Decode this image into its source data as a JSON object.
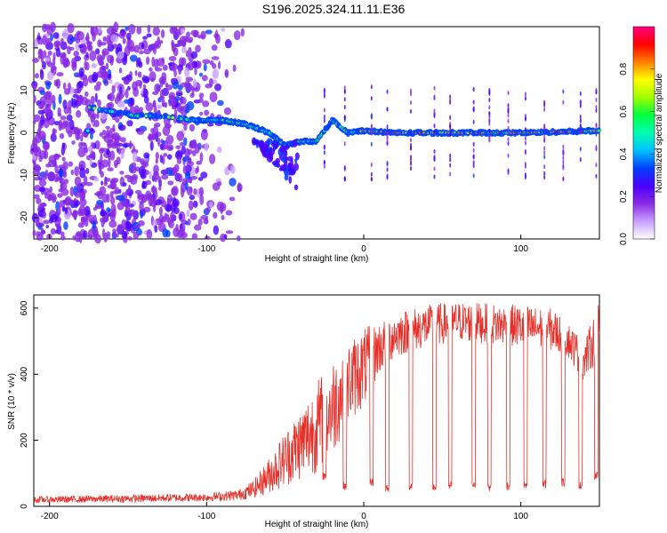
{
  "title": "S196.2025.324.11.11.E36",
  "chart_data": [
    {
      "type": "heatmap",
      "xlabel": "Height of straight line (km)",
      "ylabel": "Frequency (Hz)",
      "xlim": [
        -210,
        150
      ],
      "ylim": [
        -25,
        25
      ],
      "xticks": [
        -200,
        -100,
        0,
        100
      ],
      "yticks": [
        -20,
        -10,
        0,
        10,
        20
      ],
      "colorbar": {
        "label": "Normalized spectral amplitude",
        "range": [
          0,
          1
        ],
        "ticks": [
          "0.0",
          "0.2",
          "0.4",
          "0.6",
          "0.8"
        ],
        "tick_values": [
          0,
          0.2,
          0.4,
          0.6,
          0.8
        ],
        "colors": [
          "#ffffff",
          "#c8a0ff",
          "#8a2be2",
          "#4b00ff",
          "#0040ff",
          "#00c0ff",
          "#00ffb0",
          "#00ff40",
          "#a0ff00",
          "#ffff00",
          "#ff8000",
          "#ff0000",
          "#ff0080"
        ]
      },
      "ridge": {
        "description_points_x": [
          -175,
          -160,
          -145,
          -130,
          -110,
          -90,
          -75,
          -60,
          -50,
          -40,
          -30,
          -20,
          -10,
          0,
          20,
          50,
          100,
          150
        ],
        "description_points_y": [
          6,
          5,
          4,
          4,
          3,
          3,
          2,
          0,
          -3,
          -2,
          -2,
          3,
          0,
          0.5,
          0,
          0,
          0,
          0.5
        ]
      }
    },
    {
      "type": "line",
      "xlabel": "Height of straight line (km)",
      "ylabel": "SNR (10 * v/v)",
      "xlim": [
        -210,
        150
      ],
      "ylim": [
        0,
        640
      ],
      "xticks": [
        -200,
        -100,
        0,
        100
      ],
      "yticks": [
        0,
        200,
        400,
        600
      ],
      "color": "#e8302a",
      "envelope_x": [
        -210,
        -150,
        -100,
        -80,
        -70,
        -60,
        -50,
        -40,
        -30,
        -20,
        -10,
        0,
        10,
        20,
        40,
        60,
        80,
        100,
        120,
        130,
        140,
        150
      ],
      "envelope_low": [
        10,
        12,
        15,
        18,
        25,
        40,
        60,
        80,
        100,
        150,
        250,
        300,
        400,
        450,
        480,
        500,
        490,
        480,
        470,
        450,
        380,
        450
      ],
      "envelope_high": [
        30,
        35,
        40,
        50,
        80,
        150,
        230,
        300,
        380,
        450,
        500,
        540,
        560,
        590,
        610,
        620,
        615,
        610,
        600,
        560,
        500,
        620
      ],
      "dropouts_x": [
        -25,
        -12,
        5,
        15,
        30,
        45,
        55,
        70,
        80,
        92,
        103,
        115,
        127,
        138,
        148
      ],
      "dropouts_y": [
        80,
        50,
        60,
        40,
        50,
        45,
        50,
        55,
        45,
        50,
        50,
        55,
        60,
        50,
        80
      ]
    }
  ]
}
